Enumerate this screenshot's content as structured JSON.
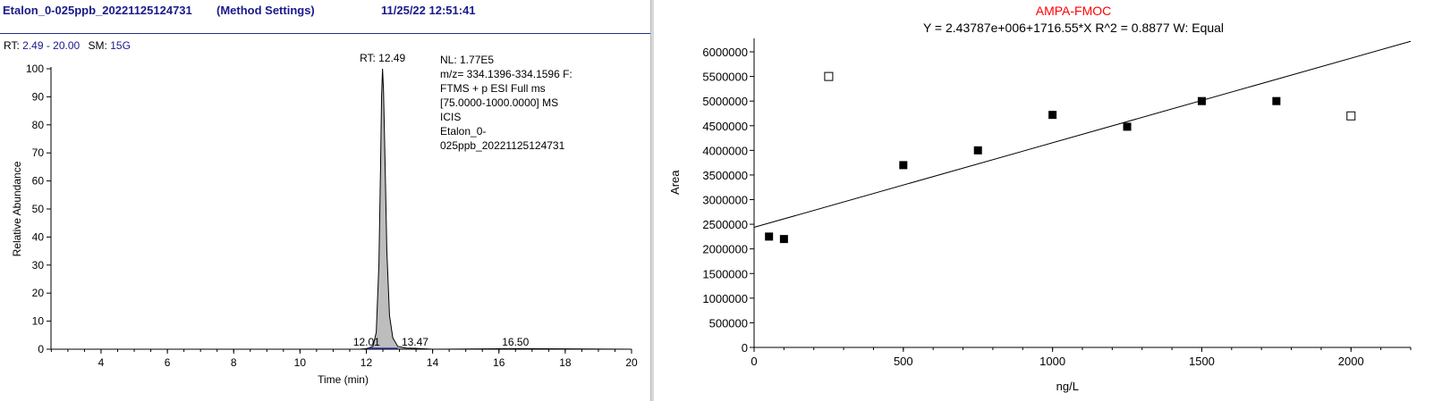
{
  "left_header": {
    "file_name": "Etalon_0-025ppb_20221125124731",
    "section": "(Method Settings)",
    "datetime": "11/25/22 12:51:41"
  },
  "range_row": {
    "rt_label": "RT:",
    "rt_value": "2.49 - 20.00",
    "sm_label": "SM:",
    "sm_value": "15G"
  },
  "chromatogram": {
    "info_lines": [
      "NL: 1.77E5",
      "m/z= 334.1396-334.1596 F:",
      "FTMS + p ESI Full ms",
      "[75.0000-1000.0000]  MS",
      "ICIS",
      "Etalon_0-",
      "025ppb_20221125124731"
    ],
    "peak_label": "RT: 12.49",
    "colors": {
      "fill": "#bdbdbd",
      "line": "#000000",
      "baseline": "#3a3ad0"
    }
  },
  "calibration": {
    "colors": {
      "title": "#ff0000",
      "text": "#000000"
    }
  },
  "chart_data": [
    {
      "type": "line",
      "title": "",
      "xlabel": "Time (min)",
      "ylabel": "Relative Abundance",
      "xlim": [
        2.49,
        20.0
      ],
      "ylim": [
        0,
        100
      ],
      "x_ticks": [
        4,
        6,
        8,
        10,
        12,
        14,
        16,
        18,
        20
      ],
      "y_ticks": [
        0,
        10,
        20,
        30,
        40,
        50,
        60,
        70,
        80,
        90,
        100
      ],
      "series": [
        {
          "x": [
            2.49,
            11.8,
            12.01,
            12.2,
            12.3,
            12.38,
            12.43,
            12.46,
            12.49,
            12.52,
            12.56,
            12.62,
            12.7,
            12.8,
            12.95,
            13.2,
            13.47,
            14.0,
            16.5,
            20.0
          ],
          "y": [
            0,
            0,
            0.2,
            1,
            6,
            30,
            65,
            90,
            100,
            92,
            70,
            35,
            12,
            4,
            1,
            0.4,
            0.3,
            0,
            0.2,
            0
          ]
        }
      ],
      "annotations": [
        {
          "text": "RT: 12.49",
          "x": 12.49,
          "y": 100
        },
        {
          "text": "12.01",
          "x": 12.01,
          "y": 0
        },
        {
          "text": "13.47",
          "x": 13.47,
          "y": 0
        },
        {
          "text": "16.50",
          "x": 16.5,
          "y": 0
        }
      ]
    },
    {
      "type": "scatter",
      "title": "AMPA-FMOC",
      "subtitle": "Y = 2.43787e+006+1716.55*X   R^2 = 0.8877   W: Equal",
      "xlabel": "ng/L",
      "ylabel": "Area",
      "xlim": [
        0,
        2200
      ],
      "ylim": [
        0,
        6200000
      ],
      "x_ticks": [
        0,
        500,
        1000,
        1500,
        2000
      ],
      "y_ticks": [
        0,
        500000,
        1000000,
        1500000,
        2000000,
        2500000,
        3000000,
        3500000,
        4000000,
        4500000,
        5000000,
        5500000,
        6000000
      ],
      "points": [
        {
          "x": 50,
          "y": 2250000,
          "included": true
        },
        {
          "x": 100,
          "y": 2200000,
          "included": true
        },
        {
          "x": 250,
          "y": 5500000,
          "included": false
        },
        {
          "x": 500,
          "y": 3700000,
          "included": true
        },
        {
          "x": 750,
          "y": 4000000,
          "included": true
        },
        {
          "x": 1000,
          "y": 4720000,
          "included": true
        },
        {
          "x": 1250,
          "y": 4480000,
          "included": true
        },
        {
          "x": 1500,
          "y": 5000000,
          "included": true
        },
        {
          "x": 1750,
          "y": 5000000,
          "included": true
        },
        {
          "x": 2000,
          "y": 4700000,
          "included": false
        }
      ],
      "fit": {
        "intercept": 2437870,
        "slope": 1716.55
      }
    }
  ]
}
